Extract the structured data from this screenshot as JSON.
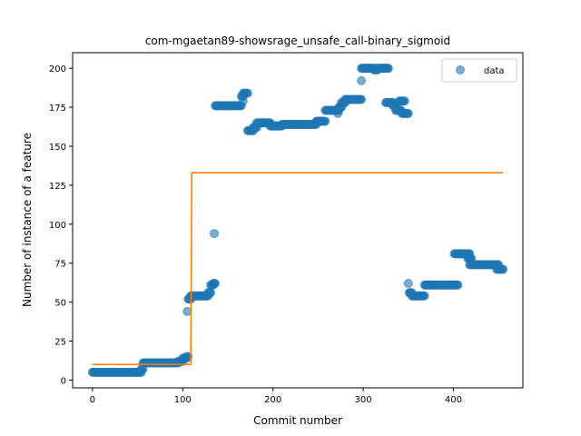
{
  "chart_data": {
    "type": "scatter",
    "title": "com-mgaetan89-showsrage_unsafe_call-binary_sigmoid",
    "xlabel": "Commit number",
    "ylabel": "Number of instance of a feature",
    "xlim": [
      -22,
      477
    ],
    "ylim": [
      -5,
      210
    ],
    "xticks": [
      0,
      100,
      200,
      300,
      400
    ],
    "yticks": [
      0,
      25,
      50,
      75,
      100,
      125,
      150,
      175,
      200
    ],
    "grid": false,
    "legend_position": "top-right",
    "colors": {
      "data": "#1f77b4",
      "fit": "#ff7f0e"
    },
    "series": [
      {
        "name": "data",
        "kind": "scatter",
        "segments": [
          {
            "x_start": 0,
            "x_end": 54,
            "y": 5
          },
          {
            "x_start": 54,
            "x_end": 56,
            "y": 7
          },
          {
            "x_start": 56,
            "x_end": 95,
            "y": 11
          },
          {
            "x_start": 95,
            "x_end": 100,
            "y": 12
          },
          {
            "x_start": 100,
            "x_end": 104,
            "y": 14
          },
          {
            "x_start": 104,
            "x_end": 106,
            "y": 15
          },
          {
            "x_start": 106,
            "x_end": 109,
            "y": 52
          },
          {
            "x_start": 109,
            "x_end": 128,
            "y": 54
          },
          {
            "x_start": 128,
            "x_end": 131,
            "y": 56
          },
          {
            "x_start": 131,
            "x_end": 134,
            "y": 61
          },
          {
            "x_start": 134,
            "x_end": 136,
            "y": 62
          },
          {
            "x_start": 136,
            "x_end": 165,
            "y": 176
          },
          {
            "x_start": 165,
            "x_end": 167,
            "y": 182
          },
          {
            "x_start": 167,
            "x_end": 172,
            "y": 184
          },
          {
            "x_start": 172,
            "x_end": 178,
            "y": 160
          },
          {
            "x_start": 178,
            "x_end": 182,
            "y": 162
          },
          {
            "x_start": 182,
            "x_end": 197,
            "y": 165
          },
          {
            "x_start": 197,
            "x_end": 210,
            "y": 163
          },
          {
            "x_start": 210,
            "x_end": 248,
            "y": 164
          },
          {
            "x_start": 248,
            "x_end": 258,
            "y": 166
          },
          {
            "x_start": 258,
            "x_end": 273,
            "y": 173
          },
          {
            "x_start": 273,
            "x_end": 276,
            "y": 175
          },
          {
            "x_start": 276,
            "x_end": 280,
            "y": 178
          },
          {
            "x_start": 280,
            "x_end": 298,
            "y": 180
          },
          {
            "x_start": 298,
            "x_end": 312,
            "y": 200
          },
          {
            "x_start": 312,
            "x_end": 316,
            "y": 199
          },
          {
            "x_start": 316,
            "x_end": 328,
            "y": 200
          },
          {
            "x_start": 325,
            "x_end": 333,
            "y": 178
          },
          {
            "x_start": 333,
            "x_end": 336,
            "y": 176
          },
          {
            "x_start": 336,
            "x_end": 342,
            "y": 173
          },
          {
            "x_start": 340,
            "x_end": 346,
            "y": 179
          },
          {
            "x_start": 343,
            "x_end": 350,
            "y": 171
          },
          {
            "x_start": 351,
            "x_end": 354,
            "y": 56
          },
          {
            "x_start": 354,
            "x_end": 368,
            "y": 54
          },
          {
            "x_start": 368,
            "x_end": 405,
            "y": 61
          },
          {
            "x_start": 401,
            "x_end": 418,
            "y": 81
          },
          {
            "x_start": 416,
            "x_end": 420,
            "y": 78
          },
          {
            "x_start": 418,
            "x_end": 450,
            "y": 74
          },
          {
            "x_start": 448,
            "x_end": 455,
            "y": 71
          }
        ],
        "outliers": [
          {
            "x": 105,
            "y": 44
          },
          {
            "x": 135,
            "y": 94
          },
          {
            "x": 167,
            "y": 179
          },
          {
            "x": 272,
            "y": 171
          },
          {
            "x": 298,
            "y": 192
          },
          {
            "x": 350,
            "y": 62
          }
        ]
      },
      {
        "name": "",
        "kind": "line",
        "x": [
          0,
          109,
          110,
          455
        ],
        "y": [
          10,
          10,
          133,
          133
        ]
      }
    ],
    "legend": {
      "label": "data"
    }
  }
}
